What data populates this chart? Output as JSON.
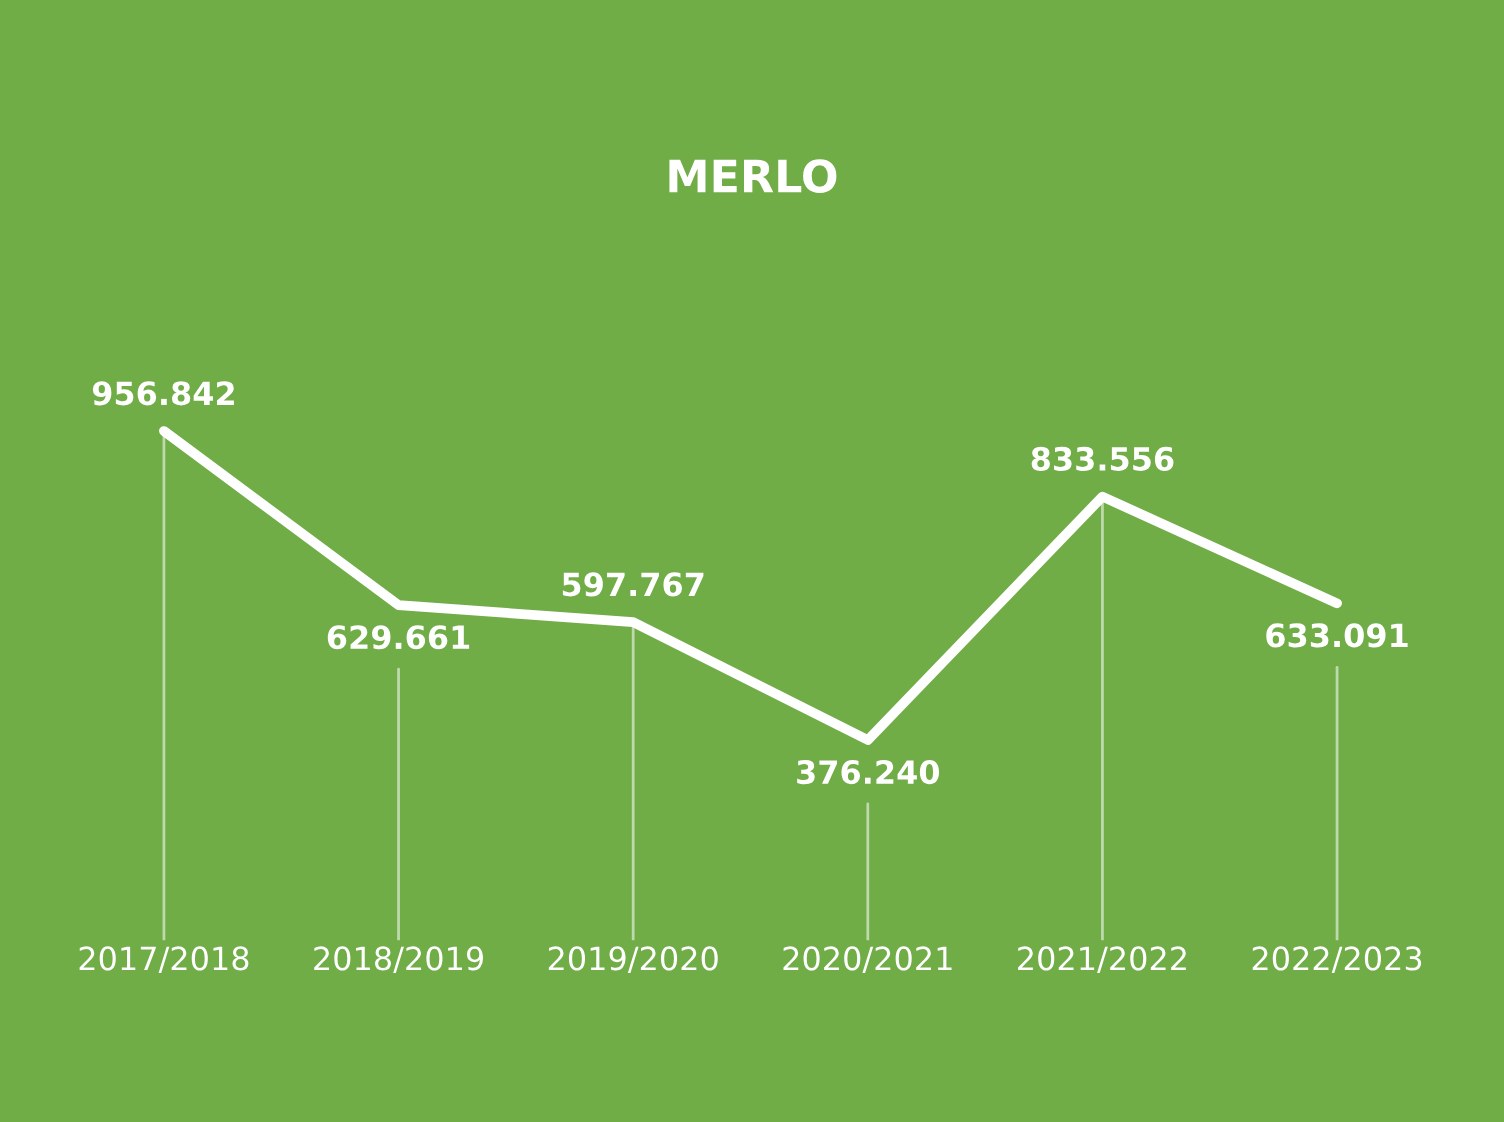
{
  "chart_data": {
    "type": "line",
    "title": "MERLO",
    "categories": [
      "2017/2018",
      "2018/2019",
      "2019/2020",
      "2020/2021",
      "2021/2022",
      "2022/2023"
    ],
    "series": [
      {
        "color": "#ffffff",
        "values": [
          956842,
          629661,
          597767,
          376240,
          833556,
          633091
        ],
        "value_labels": [
          "956.842",
          "629.661",
          "597.767",
          "376.240",
          "833.556",
          "633.091"
        ]
      }
    ],
    "grid": "x",
    "legend": false,
    "line_style": "solid",
    "tick_labels": "x"
  }
}
